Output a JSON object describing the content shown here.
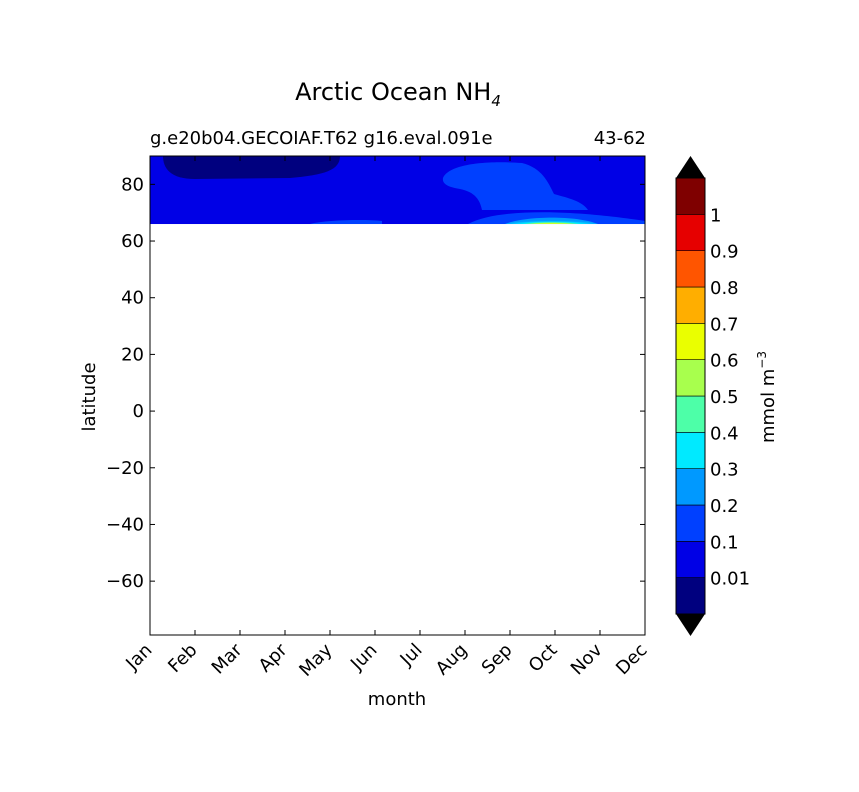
{
  "chart_data": {
    "type": "heatmap",
    "title": "Arctic Ocean NH",
    "title_subscript": "4",
    "subtitle_left": "g.e20b04.GECOIAF.T62 g16.eval.091e",
    "subtitle_right": "43-62",
    "xlabel": "month",
    "ylabel": "latitude",
    "x_ticks": [
      "Jan",
      "Feb",
      "Mar",
      "Apr",
      "May",
      "Jun",
      "Jul",
      "Aug",
      "Sep",
      "Oct",
      "Nov",
      "Dec"
    ],
    "y_ticks": [
      80,
      60,
      40,
      20,
      0,
      -20,
      -40,
      -60
    ],
    "ylim": [
      -79,
      90
    ],
    "data_lat_range": [
      66,
      90
    ],
    "grid": false,
    "colorbar": {
      "label": "mmol m",
      "label_exponent": "−3",
      "tick_labels": [
        "0.01",
        "0.1",
        "0.2",
        "0.3",
        "0.4",
        "0.5",
        "0.6",
        "0.7",
        "0.8",
        "0.9",
        "1"
      ],
      "levels": [
        0.01,
        0.1,
        0.2,
        0.3,
        0.4,
        0.5,
        0.6,
        0.7,
        0.8,
        0.9,
        1.0
      ],
      "colors": [
        "#00007f",
        "#0000e6",
        "#0040ff",
        "#0099ff",
        "#00eaff",
        "#4dffa8",
        "#a8ff4d",
        "#eaff00",
        "#ffae00",
        "#ff5500",
        "#e60000",
        "#7f0000"
      ],
      "under_color": "#000000",
      "over_color": "#000000"
    },
    "field": {
      "background_level": "0.01-0.1",
      "features": [
        {
          "level": "<0.01",
          "months": [
            "Jan",
            "May"
          ],
          "lat": [
            82,
            90
          ]
        },
        {
          "level": "0.1-0.2",
          "months": [
            "Aug",
            "Nov"
          ],
          "lat": [
            72,
            87
          ]
        },
        {
          "level": "0.1-0.2",
          "months": [
            "Sep",
            "Dec"
          ],
          "lat": [
            66,
            70
          ]
        },
        {
          "level": "0.1-0.2",
          "months": [
            "May",
            "Jun"
          ],
          "lat": [
            66,
            67
          ]
        },
        {
          "level": "0.2-0.5",
          "months": [
            "Sep",
            "Nov"
          ],
          "lat": [
            66,
            68
          ]
        },
        {
          "level": "0.6-0.7",
          "months": [
            "Oct",
            "Oct"
          ],
          "lat": [
            66,
            66.5
          ]
        }
      ]
    }
  }
}
